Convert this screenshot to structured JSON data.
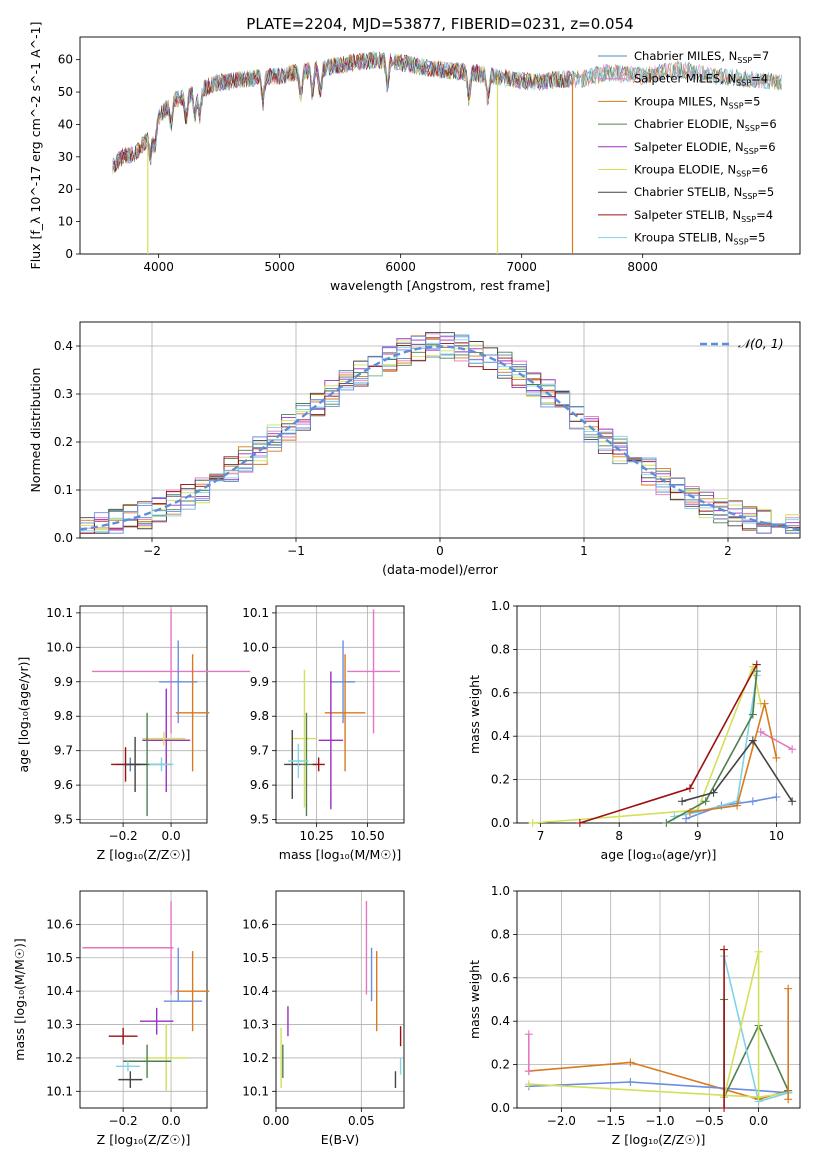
{
  "figure_title": "PLATE=2204, MJD=53877, FIBERID=0231, z=0.054",
  "colors": {
    "chabrier_miles": "#5a8aaf",
    "salpeter_miles": "#e377c2",
    "kroupa_miles": "#d87a1f",
    "chabrier_elodie": "#4f7f4f",
    "salpeter_elodie": "#9b30c4",
    "kroupa_elodie": "#d4df5a",
    "chabrier_stelib": "#444444",
    "salpeter_stelib": "#9b1111",
    "kroupa_stelib": "#7fd3e6",
    "blue": "#6a8ee0",
    "gaussian": "#5b8fd9"
  },
  "chart_data": [
    {
      "id": "spectrum",
      "type": "line",
      "title": "PLATE=2204, MJD=53877, FIBERID=0231, z=0.054",
      "xlabel": "wavelength [Angstrom, rest frame]",
      "ylabel": "Flux [f_λ 10^-17 erg cm^-2 s^-1 A^-1]",
      "xlim": [
        3350,
        9300
      ],
      "ylim": [
        0,
        67
      ],
      "xticks": [
        4000,
        5000,
        6000,
        7000,
        8000
      ],
      "yticks": [
        0,
        10,
        20,
        30,
        40,
        50,
        60
      ],
      "legend_position": "top-right",
      "series": [
        {
          "name": "Chabrier MILES, N_SSP=7",
          "label": "Chabrier MILES, N",
          "sub": "SSP",
          "suffix": "=7",
          "color": "#5a8aaf"
        },
        {
          "name": "Salpeter MILES, N_SSP=4",
          "label": "Salpeter MILES, N",
          "sub": "SSP",
          "suffix": "=4",
          "color": "#e377c2"
        },
        {
          "name": "Kroupa MILES, N_SSP=5",
          "label": "Kroupa MILES, N",
          "sub": "SSP",
          "suffix": "=5",
          "color": "#d87a1f"
        },
        {
          "name": "Chabrier ELODIE, N_SSP=6",
          "label": "Chabrier ELODIE, N",
          "sub": "SSP",
          "suffix": "=6",
          "color": "#4f7f4f"
        },
        {
          "name": "Salpeter ELODIE, N_SSP=6",
          "label": "Salpeter ELODIE, N",
          "sub": "SSP",
          "suffix": "=6",
          "color": "#9b30c4"
        },
        {
          "name": "Kroupa ELODIE, N_SSP=6",
          "label": "Kroupa ELODIE, N",
          "sub": "SSP",
          "suffix": "=6",
          "color": "#d4df5a"
        },
        {
          "name": "Chabrier STELIB, N_SSP=5",
          "label": "Chabrier STELIB, N",
          "sub": "SSP",
          "suffix": "=5",
          "color": "#444444"
        },
        {
          "name": "Salpeter STELIB, N_SSP=4",
          "label": "Salpeter STELIB, N",
          "sub": "SSP",
          "suffix": "=4",
          "color": "#9b1111"
        },
        {
          "name": "Kroupa STELIB, N_SSP=5",
          "label": "Kroupa STELIB, N",
          "sub": "SSP",
          "suffix": "=5",
          "color": "#7fd3e6"
        }
      ],
      "continuum": {
        "x": [
          3620,
          3700,
          3800,
          3900,
          4000,
          4100,
          4300,
          4500,
          4700,
          5000,
          5300,
          5600,
          5800,
          6000,
          6300,
          6600,
          6900,
          7100,
          7300,
          7500,
          7700,
          8000,
          8300,
          8600,
          8900,
          9150
        ],
        "y": [
          27,
          30,
          31,
          35,
          42,
          47,
          50,
          53,
          54,
          55,
          57,
          59,
          60,
          59,
          57,
          56,
          54,
          53,
          54,
          54,
          56,
          55,
          57,
          55,
          54,
          53
        ]
      },
      "dropouts": [
        {
          "x": 3910,
          "y": 0
        },
        {
          "x": 6800,
          "y": 0
        },
        {
          "x": 7420,
          "y": 0
        }
      ]
    },
    {
      "id": "residuals",
      "type": "bar",
      "xlabel": "(data-model)/error",
      "ylabel": "Normed distribution",
      "xlim": [
        -2.5,
        2.5
      ],
      "ylim": [
        0,
        0.45
      ],
      "xticks": [
        -2,
        -1,
        0,
        1,
        2
      ],
      "yticks": [
        0.0,
        0.1,
        0.2,
        0.3,
        0.4
      ],
      "legend": "𝒩(0, 1)",
      "legend_position": "top-right",
      "bin_width": 0.1,
      "gaussian": {
        "mean": 0,
        "sigma": 1
      }
    },
    {
      "id": "age-vs-Z",
      "type": "scatter",
      "xlabel": "Z [log₁₀(Z/Z☉)]",
      "ylabel": "age [log₁₀(age/yr)]",
      "xlim": [
        -0.38,
        0.15
      ],
      "ylim": [
        9.49,
        10.12
      ],
      "xticks": [
        -0.2,
        0.0
      ],
      "yticks": [
        9.5,
        9.6,
        9.7,
        9.8,
        9.9,
        10.0,
        10.1
      ],
      "points": [
        {
          "x": 0.0,
          "y": 9.93,
          "xerr": 0.33,
          "yerr": 0.18,
          "color": "#e377c2"
        },
        {
          "x": 0.03,
          "y": 9.9,
          "xerr": 0.08,
          "yerr": 0.12,
          "color": "#6a8ee0"
        },
        {
          "x": 0.09,
          "y": 9.81,
          "xerr": 0.07,
          "yerr": 0.17,
          "color": "#d87a1f"
        },
        {
          "x": -0.02,
          "y": 9.73,
          "xerr": 0.1,
          "yerr": 0.15,
          "color": "#9b30c4"
        },
        {
          "x": -0.03,
          "y": 9.735,
          "xerr": 0.09,
          "yerr": 0.02,
          "color": "#d4df5a"
        },
        {
          "x": -0.1,
          "y": 9.66,
          "xerr": 0.1,
          "yerr": 0.15,
          "color": "#4f7f4f"
        },
        {
          "x": -0.17,
          "y": 9.66,
          "xerr": 0.06,
          "yerr": 0.02,
          "color": "#5a8aaf"
        },
        {
          "x": -0.19,
          "y": 9.66,
          "xerr": 0.06,
          "yerr": 0.05,
          "color": "#9b1111"
        },
        {
          "x": -0.15,
          "y": 9.66,
          "xerr": 0.05,
          "yerr": 0.08,
          "color": "#444444"
        },
        {
          "x": -0.04,
          "y": 9.66,
          "xerr": 0.05,
          "yerr": 0.02,
          "color": "#7fd3e6"
        }
      ]
    },
    {
      "id": "age-vs-mass",
      "type": "scatter",
      "xlabel": "mass [log₁₀(M/M☉)]",
      "ylabel": "",
      "xlim": [
        10.05,
        10.68
      ],
      "ylim": [
        9.49,
        10.12
      ],
      "xticks": [
        10.25,
        10.5
      ],
      "yticks": [
        9.5,
        9.6,
        9.7,
        9.8,
        9.9,
        10.0,
        10.1
      ],
      "points": [
        {
          "x": 10.53,
          "y": 9.93,
          "xerr": 0.13,
          "yerr": 0.18,
          "color": "#e377c2"
        },
        {
          "x": 10.38,
          "y": 9.9,
          "xerr": 0.06,
          "yerr": 0.12,
          "color": "#6a8ee0"
        },
        {
          "x": 10.39,
          "y": 9.81,
          "xerr": 0.1,
          "yerr": 0.17,
          "color": "#d87a1f"
        },
        {
          "x": 10.32,
          "y": 9.73,
          "xerr": 0.06,
          "yerr": 0.2,
          "color": "#9b30c4"
        },
        {
          "x": 10.19,
          "y": 9.735,
          "xerr": 0.06,
          "yerr": 0.2,
          "color": "#d4df5a"
        },
        {
          "x": 10.2,
          "y": 9.66,
          "xerr": 0.05,
          "yerr": 0.15,
          "color": "#4f7f4f"
        },
        {
          "x": 10.13,
          "y": 9.66,
          "xerr": 0.04,
          "yerr": 0.1,
          "color": "#444444"
        },
        {
          "x": 10.26,
          "y": 9.66,
          "xerr": 0.03,
          "yerr": 0.02,
          "color": "#9b1111"
        },
        {
          "x": 10.16,
          "y": 9.67,
          "xerr": 0.05,
          "yerr": 0.05,
          "color": "#7fd3e6"
        }
      ]
    },
    {
      "id": "massweight-vs-age",
      "type": "line",
      "xlabel": "age [log₁₀(age/yr)]",
      "ylabel": "mass weight",
      "xlim": [
        6.7,
        10.3
      ],
      "ylim": [
        0,
        1.0
      ],
      "xticks": [
        7,
        8,
        9,
        10
      ],
      "yticks": [
        0.0,
        0.2,
        0.4,
        0.6,
        0.8,
        1.0
      ],
      "series": [
        {
          "color": "#d4df5a",
          "x": [
            6.9,
            8.0,
            9.0,
            9.7,
            9.8
          ],
          "y": [
            0.0,
            0.03,
            0.06,
            0.72,
            0.55
          ]
        },
        {
          "color": "#6a8ee0",
          "x": [
            8.85,
            9.3,
            9.7,
            10.0
          ],
          "y": [
            0.02,
            0.08,
            0.1,
            0.12
          ]
        },
        {
          "color": "#7fd3e6",
          "x": [
            8.7,
            9.0,
            9.5,
            9.75
          ],
          "y": [
            0.03,
            0.05,
            0.1,
            0.68
          ]
        },
        {
          "color": "#9b1111",
          "x": [
            7.5,
            8.9,
            9.75
          ],
          "y": [
            0.0,
            0.16,
            0.73
          ]
        },
        {
          "color": "#4f7f4f",
          "x": [
            8.6,
            9.1,
            9.7,
            9.75
          ],
          "y": [
            0.0,
            0.1,
            0.5,
            0.7
          ]
        },
        {
          "color": "#e377c2",
          "x": [
            9.8,
            10.2
          ],
          "y": [
            0.42,
            0.34
          ]
        },
        {
          "color": "#d87a1f",
          "x": [
            8.9,
            9.5,
            9.85,
            10.0
          ],
          "y": [
            0.05,
            0.08,
            0.55,
            0.3
          ]
        },
        {
          "color": "#444444",
          "x": [
            8.8,
            9.2,
            9.7,
            10.2
          ],
          "y": [
            0.1,
            0.14,
            0.38,
            0.1
          ]
        }
      ]
    },
    {
      "id": "mass-vs-Z",
      "type": "scatter",
      "xlabel": "Z [log₁₀(Z/Z☉)]",
      "ylabel": "mass [log₁₀(M/M☉)]",
      "xlim": [
        -0.38,
        0.15
      ],
      "ylim": [
        10.05,
        10.7
      ],
      "xticks": [
        -0.2,
        0.0
      ],
      "yticks": [
        10.1,
        10.2,
        10.3,
        10.4,
        10.5,
        10.6
      ],
      "points": [
        {
          "x": -0.18,
          "y": 10.53,
          "xerr": 0.19,
          "yerr": 0.0,
          "color": "#e377c2"
        },
        {
          "x": 0.0,
          "y": 10.53,
          "xerr": 0.0,
          "yerr": 0.14,
          "color": "#e377c2"
        },
        {
          "x": 0.03,
          "y": 10.45,
          "xerr": 0.0,
          "yerr": 0.08,
          "color": "#6a8ee0"
        },
        {
          "x": 0.05,
          "y": 10.37,
          "xerr": 0.08,
          "yerr": 0.0,
          "color": "#6a8ee0"
        },
        {
          "x": 0.09,
          "y": 10.4,
          "xerr": 0.07,
          "yerr": 0.12,
          "color": "#d87a1f"
        },
        {
          "x": -0.06,
          "y": 10.31,
          "xerr": 0.07,
          "yerr": 0.04,
          "color": "#9b30c4"
        },
        {
          "x": -0.2,
          "y": 10.265,
          "xerr": 0.06,
          "yerr": 0.025,
          "color": "#9b1111"
        },
        {
          "x": -0.02,
          "y": 10.2,
          "xerr": 0.09,
          "yerr": 0.1,
          "color": "#d4df5a"
        },
        {
          "x": -0.1,
          "y": 10.19,
          "xerr": 0.1,
          "yerr": 0.05,
          "color": "#4f7f4f"
        },
        {
          "x": -0.18,
          "y": 10.175,
          "xerr": 0.05,
          "yerr": 0.015,
          "color": "#7fd3e6"
        },
        {
          "x": -0.17,
          "y": 10.135,
          "xerr": 0.05,
          "yerr": 0.025,
          "color": "#444444"
        }
      ]
    },
    {
      "id": "mass-vs-ebv",
      "type": "scatter",
      "xlabel": "E(B-V)",
      "ylabel": "",
      "xlim": [
        0.0,
        0.075
      ],
      "ylim": [
        10.05,
        10.7
      ],
      "xticks": [
        0.0,
        0.05
      ],
      "yticks": [
        10.1,
        10.2,
        10.3,
        10.4,
        10.5,
        10.6
      ],
      "points": [
        {
          "x": 0.053,
          "y": 10.53,
          "xerr": 0.0,
          "yerr": 0.14,
          "color": "#e377c2"
        },
        {
          "x": 0.056,
          "y": 10.45,
          "xerr": 0.0,
          "yerr": 0.08,
          "color": "#6a8ee0"
        },
        {
          "x": 0.059,
          "y": 10.4,
          "xerr": 0.0,
          "yerr": 0.12,
          "color": "#d87a1f"
        },
        {
          "x": 0.007,
          "y": 10.31,
          "xerr": 0.0,
          "yerr": 0.045,
          "color": "#9b30c4"
        },
        {
          "x": 0.073,
          "y": 10.265,
          "xerr": 0.0,
          "yerr": 0.03,
          "color": "#9b1111"
        },
        {
          "x": 0.003,
          "y": 10.2,
          "xerr": 0.0,
          "yerr": 0.09,
          "color": "#d4df5a"
        },
        {
          "x": 0.004,
          "y": 10.19,
          "xerr": 0.0,
          "yerr": 0.05,
          "color": "#4f7f4f"
        },
        {
          "x": 0.073,
          "y": 10.175,
          "xerr": 0.0,
          "yerr": 0.025,
          "color": "#7fd3e6"
        },
        {
          "x": 0.07,
          "y": 10.135,
          "xerr": 0.0,
          "yerr": 0.025,
          "color": "#444444"
        }
      ]
    },
    {
      "id": "massweight-vs-Z",
      "type": "line",
      "xlabel": "Z [log₁₀(Z/Z☉)]",
      "ylabel": "mass weight",
      "xlim": [
        -2.45,
        0.42
      ],
      "ylim": [
        0,
        1.0
      ],
      "xticks": [
        -2.0,
        -1.5,
        -1.0,
        -0.5,
        0.0
      ],
      "yticks": [
        0.0,
        0.2,
        0.4,
        0.6,
        0.8,
        1.0
      ],
      "series": [
        {
          "color": "#d87a1f",
          "x": [
            -2.33,
            -1.3,
            0.0,
            0.3
          ],
          "y": [
            0.17,
            0.21,
            0.04,
            0.08
          ]
        },
        {
          "color": "#6a8ee0",
          "x": [
            -2.33,
            -1.3,
            0.0,
            0.3
          ],
          "y": [
            0.1,
            0.12,
            0.08,
            0.07
          ]
        },
        {
          "color": "#d4df5a",
          "x": [
            -2.33,
            0.0,
            0.3
          ],
          "y": [
            0.11,
            0.05,
            0.07
          ]
        },
        {
          "color": "#4f7f4f",
          "x": [
            -0.35,
            -0.35,
            0.0,
            0.3
          ],
          "y": [
            0.5,
            0.05,
            0.38,
            0.08
          ]
        },
        {
          "color": "#7fd3e6",
          "x": [
            -0.35,
            0.0,
            0.3
          ],
          "y": [
            0.7,
            0.03,
            0.07
          ]
        },
        {
          "color": "#d4df5a",
          "x": [
            -0.35,
            0.0,
            0.0
          ],
          "y": [
            0.05,
            0.72,
            0.05
          ]
        },
        {
          "color": "#9b1111",
          "x": [
            -0.35,
            -0.35
          ],
          "y": [
            0.73,
            0.0
          ]
        },
        {
          "color": "#e377c2",
          "x": [
            -2.33,
            -2.33
          ],
          "y": [
            0.34,
            0.17
          ]
        },
        {
          "color": "#d87a1f",
          "x": [
            0.3,
            0.3
          ],
          "y": [
            0.55,
            0.04
          ]
        }
      ]
    }
  ]
}
